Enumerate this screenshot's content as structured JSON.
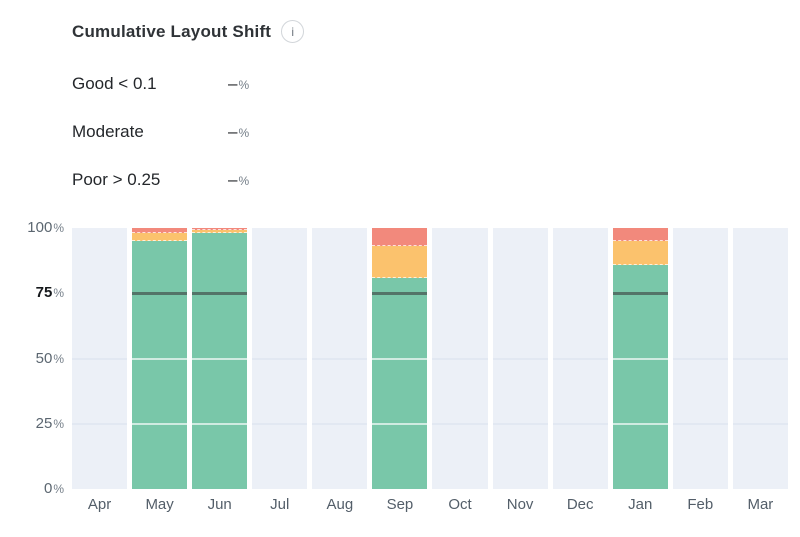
{
  "header": {
    "title": "Cumulative Layout Shift",
    "info_icon_glyph": "i"
  },
  "legend": {
    "rows": [
      {
        "label": "Good < 0.1",
        "value": "–",
        "unit": "%"
      },
      {
        "label": "Moderate",
        "value": "–",
        "unit": "%"
      },
      {
        "label": "Poor > 0.25",
        "value": "–",
        "unit": "%"
      }
    ]
  },
  "chart_data": {
    "type": "bar",
    "stacked": true,
    "title": "Cumulative Layout Shift",
    "categories": [
      "Apr",
      "May",
      "Jun",
      "Jul",
      "Aug",
      "Sep",
      "Oct",
      "Nov",
      "Dec",
      "Jan",
      "Feb",
      "Mar"
    ],
    "series": [
      {
        "name": "Good",
        "color": "#79c7a9",
        "values": [
          null,
          95,
          98,
          null,
          null,
          81,
          null,
          null,
          null,
          86,
          null,
          null
        ]
      },
      {
        "name": "Moderate",
        "color": "#fbc26d",
        "values": [
          null,
          3,
          1.2,
          null,
          null,
          12,
          null,
          null,
          null,
          9,
          null,
          null
        ]
      },
      {
        "name": "Poor",
        "color": "#f2897c",
        "values": [
          null,
          2,
          0.8,
          null,
          null,
          7,
          null,
          null,
          null,
          5,
          null,
          null
        ]
      }
    ],
    "ylim": [
      0,
      100
    ],
    "y_unit": "%",
    "y_ticks": [
      {
        "value": 100,
        "bold": false
      },
      {
        "value": 75,
        "bold": true
      },
      {
        "value": 50,
        "bold": false
      },
      {
        "value": 25,
        "bold": false
      },
      {
        "value": 0,
        "bold": false
      }
    ],
    "gridline_values": [
      25,
      50
    ],
    "threshold_value": 75,
    "legend_position": "top-left",
    "xlabel": "",
    "ylabel": ""
  },
  "colors": {
    "good": "#79c7a9",
    "moderate": "#fbc26d",
    "poor": "#f2897c",
    "empty_track": "#ecf0f7",
    "grid_on_track": "#e2e8f2",
    "grid_on_bar": "rgba(255,255,255,0.65)",
    "threshold_line": "#537468"
  }
}
